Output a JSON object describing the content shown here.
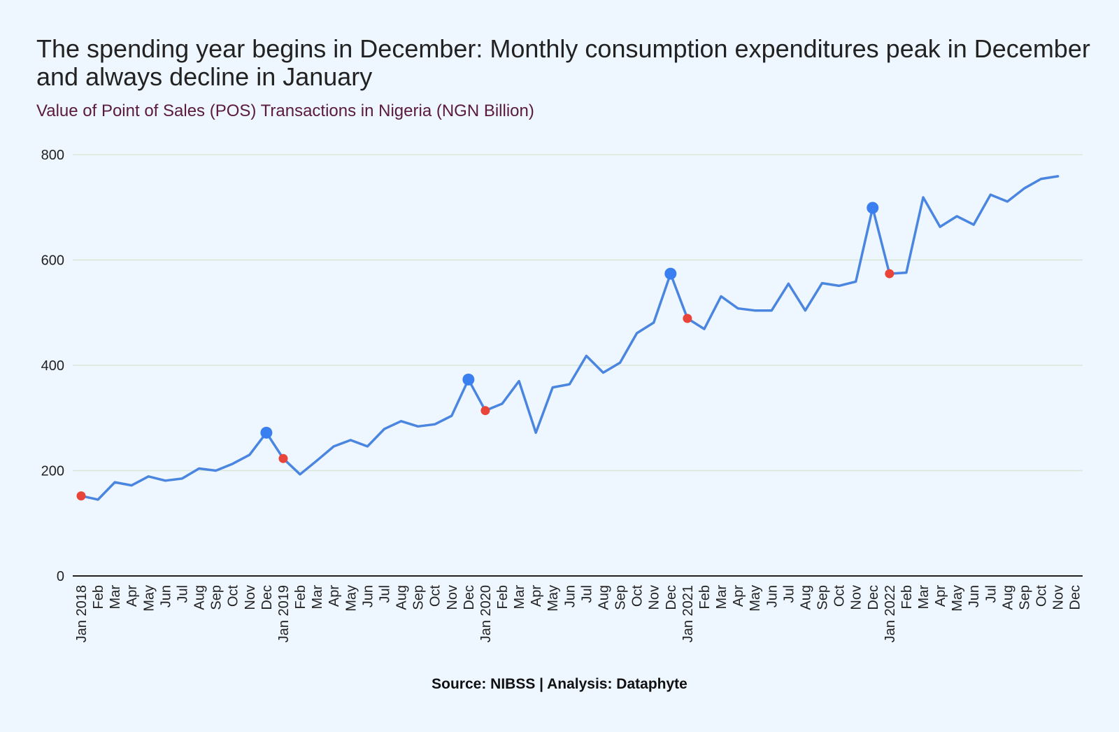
{
  "title": "The spending year begins in December: Monthly consumption expenditures peak in December and always decline in January",
  "subtitle": "Value of Point of Sales (POS) Transactions in Nigeria (NGN Billion)",
  "source": "Source: NIBSS | Analysis: Dataphyte",
  "colors": {
    "background": "#eef6ff",
    "line": "#4a86e0",
    "peak_marker": "#3a7ff0",
    "january_marker": "#e8443a",
    "grid": "#d8e8d8",
    "axis": "#222222",
    "subtitle": "#5a1a3e"
  },
  "chart_data": {
    "type": "line",
    "title": "The spending year begins in December: Monthly consumption expenditures peak in December and always decline in January",
    "subtitle": "Value of Point of Sales (POS) Transactions in Nigeria (NGN Billion)",
    "xlabel": "",
    "ylabel": "",
    "ylim": [
      0,
      800
    ],
    "yticks": [
      0,
      200,
      400,
      600,
      800
    ],
    "grid": true,
    "legend": "none",
    "categories": [
      "Jan 2018",
      "Feb",
      "Mar",
      "Apr",
      "May",
      "Jun",
      "Jul",
      "Aug",
      "Sep",
      "Oct",
      "Nov",
      "Dec",
      "Jan 2019",
      "Feb",
      "Mar",
      "Apr",
      "May",
      "Jun",
      "Jul",
      "Aug",
      "Sep",
      "Oct",
      "Nov",
      "Dec",
      "Jan 2020",
      "Feb",
      "Mar",
      "Apr",
      "May",
      "Jun",
      "Jul",
      "Aug",
      "Sep",
      "Oct",
      "Nov",
      "Dec",
      "Jan 2021",
      "Feb",
      "Mar",
      "Apr",
      "May",
      "Jun",
      "Jul",
      "Aug",
      "Sep",
      "Oct",
      "Nov",
      "Dec",
      "Jan 2022",
      "Feb",
      "Mar",
      "Apr",
      "May",
      "Jun",
      "Jul",
      "Aug",
      "Sep",
      "Oct",
      "Nov",
      "Dec"
    ],
    "series": [
      {
        "values": [
          152,
          145,
          178,
          172,
          189,
          181,
          185,
          204,
          200,
          213,
          230,
          272,
          223,
          193,
          219,
          246,
          258,
          246,
          279,
          294,
          284,
          288,
          304,
          373,
          314,
          327,
          370,
          272,
          358,
          364,
          418,
          386,
          405,
          461,
          481,
          574,
          489,
          469,
          531,
          508,
          504,
          504,
          555,
          504,
          556,
          551,
          559,
          699,
          574,
          576,
          719,
          663,
          683,
          667,
          724,
          711,
          736,
          754,
          759,
          null
        ]
      }
    ],
    "peak_markers": [
      {
        "category_index": 11,
        "value": 272
      },
      {
        "category_index": 23,
        "value": 373
      },
      {
        "category_index": 35,
        "value": 574
      },
      {
        "category_index": 47,
        "value": 699
      }
    ],
    "january_markers": [
      {
        "category_index": 0,
        "value": 152
      },
      {
        "category_index": 12,
        "value": 223
      },
      {
        "category_index": 24,
        "value": 314
      },
      {
        "category_index": 36,
        "value": 489
      },
      {
        "category_index": 48,
        "value": 574
      }
    ]
  }
}
